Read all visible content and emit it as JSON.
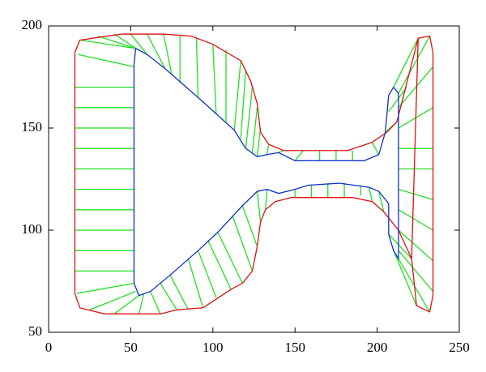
{
  "chart_data": {
    "type": "line",
    "xlim": [
      0,
      250
    ],
    "ylim": [
      50,
      200
    ],
    "xticks": [
      0,
      50,
      100,
      150,
      200,
      250
    ],
    "yticks": [
      50,
      100,
      150,
      200
    ],
    "series": [
      {
        "color": "#22e022",
        "x": [
          52,
          16,
          null,
          52,
          16,
          null,
          52,
          16,
          null,
          52,
          16,
          null,
          52,
          16,
          null,
          52,
          16,
          null,
          52,
          16,
          null,
          52,
          16,
          null,
          52,
          16,
          null,
          52,
          16,
          null,
          52,
          18,
          null,
          53,
          20,
          null,
          53,
          30,
          null,
          55,
          40,
          null,
          60,
          50,
          null,
          71,
          60,
          null,
          75,
          70,
          null,
          80,
          80,
          null,
          91,
          90,
          null,
          102,
          100,
          null,
          108,
          108,
          null,
          113,
          117,
          null,
          117,
          120,
          null,
          120,
          124,
          null,
          124,
          127,
          null,
          127,
          129,
          null,
          133,
          134,
          null,
          140,
          143,
          null,
          150,
          155,
          null,
          165,
          165,
          null,
          175,
          175,
          null,
          185,
          185,
          null,
          150,
          150,
          null,
          160,
          160,
          null,
          170,
          170,
          null,
          180,
          180,
          null,
          190,
          190,
          null,
          133,
          132,
          null,
          127,
          129,
          null,
          118,
          127,
          null,
          112,
          124,
          null,
          103,
          118,
          null,
          97,
          111,
          null,
          91,
          102,
          null,
          85,
          94,
          null,
          74,
          85,
          null,
          68,
          78,
          null,
          62,
          68,
          null,
          58,
          55,
          null,
          55,
          40,
          null,
          53,
          25,
          null,
          52,
          17,
          null,
          201,
          197,
          null,
          205,
          212,
          null,
          207,
          218,
          null,
          210,
          225,
          null,
          213,
          232,
          null,
          213,
          234,
          null,
          213,
          234,
          null,
          213,
          234,
          null,
          213,
          234,
          null,
          213,
          234,
          null,
          213,
          234,
          null,
          213,
          234,
          null,
          213,
          234,
          null,
          213,
          232,
          null,
          210,
          224,
          null,
          207,
          221,
          null,
          201,
          204,
          null,
          195,
          197
        ],
        "values": [
          80,
          80,
          null,
          90,
          90,
          null,
          100,
          100,
          null,
          110,
          110,
          null,
          120,
          120,
          null,
          130,
          130,
          null,
          140,
          140,
          null,
          150,
          150,
          null,
          160,
          160,
          null,
          170,
          170,
          null,
          180,
          186,
          null,
          189,
          193,
          null,
          189,
          195,
          null,
          188,
          196,
          null,
          186,
          196,
          null,
          179,
          196,
          null,
          176,
          196,
          null,
          172,
          195,
          null,
          165,
          194,
          null,
          157,
          191,
          null,
          153,
          188,
          null,
          149,
          183,
          null,
          145,
          178,
          null,
          140,
          170,
          null,
          138,
          160,
          null,
          136,
          150,
          null,
          137,
          142,
          null,
          138,
          139,
          null,
          134,
          139,
          null,
          134,
          139,
          null,
          134,
          139,
          null,
          134,
          139,
          null,
          120,
          116,
          null,
          122,
          116,
          null,
          123,
          116,
          null,
          123,
          116,
          null,
          122,
          117,
          null,
          120,
          110,
          null,
          119,
          104,
          null,
          112,
          92,
          null,
          107,
          80,
          null,
          99,
          74,
          null,
          95,
          71,
          null,
          90,
          67,
          null,
          86,
          62,
          null,
          78,
          61,
          null,
          74,
          61,
          null,
          70,
          59,
          null,
          69,
          59,
          null,
          68,
          59,
          null,
          70,
          61,
          null,
          74,
          69,
          null,
          137,
          143,
          null,
          148,
          153,
          null,
          158,
          170,
          null,
          170,
          194,
          null,
          167,
          195,
          null,
          160,
          180,
          null,
          150,
          160,
          null,
          140,
          140,
          null,
          130,
          130,
          null,
          120,
          115,
          null,
          110,
          100,
          null,
          100,
          85,
          null,
          90,
          70,
          null,
          86,
          60,
          null,
          90,
          63,
          null,
          98,
          86,
          null,
          119,
          109,
          null,
          121,
          114
        ]
      },
      {
        "color": "#e01010",
        "x": [
          16,
          19,
          35,
          45,
          60,
          70,
          87,
          100,
          117,
          123,
          127,
          129,
          134,
          143,
          182,
          197,
          206,
          212,
          225,
          232,
          234,
          234,
          232,
          224,
          221,
          213,
          204,
          197,
          185,
          148,
          138,
          132,
          129,
          127,
          124,
          118,
          111,
          94,
          78,
          68,
          34,
          19,
          16,
          16,
          null,
          225,
          221
        ],
        "values": [
          187,
          193,
          195,
          196,
          196,
          196,
          195,
          191,
          183,
          173,
          162,
          148,
          142,
          139,
          139,
          143,
          148,
          153,
          194,
          195,
          187,
          68,
          60,
          63,
          86,
          100,
          109,
          114,
          116,
          116,
          114,
          110,
          104,
          92,
          80,
          74,
          71,
          62,
          61,
          59,
          59,
          62,
          69,
          187,
          null,
          194,
          86
        ]
      },
      {
        "color": "#1030c8",
        "x": [
          53,
          60,
          71,
          91,
          102,
          113,
          120,
          127,
          133,
          140,
          150,
          157,
          192,
          201,
          205,
          207,
          210,
          213,
          213,
          213,
          210,
          207,
          207,
          201,
          195,
          177,
          158,
          150,
          140,
          133,
          127,
          118,
          103,
          91,
          74,
          62,
          55,
          52,
          52,
          53
        ],
        "values": [
          189,
          186,
          179,
          165,
          157,
          149,
          140,
          136,
          137,
          138,
          134,
          134,
          134,
          137,
          148,
          166,
          170,
          167,
          139,
          86,
          90,
          98,
          113,
          119,
          121,
          123,
          122,
          120,
          118,
          120,
          119,
          112,
          99,
          90,
          78,
          70,
          68,
          74,
          181,
          189
        ]
      }
    ]
  }
}
